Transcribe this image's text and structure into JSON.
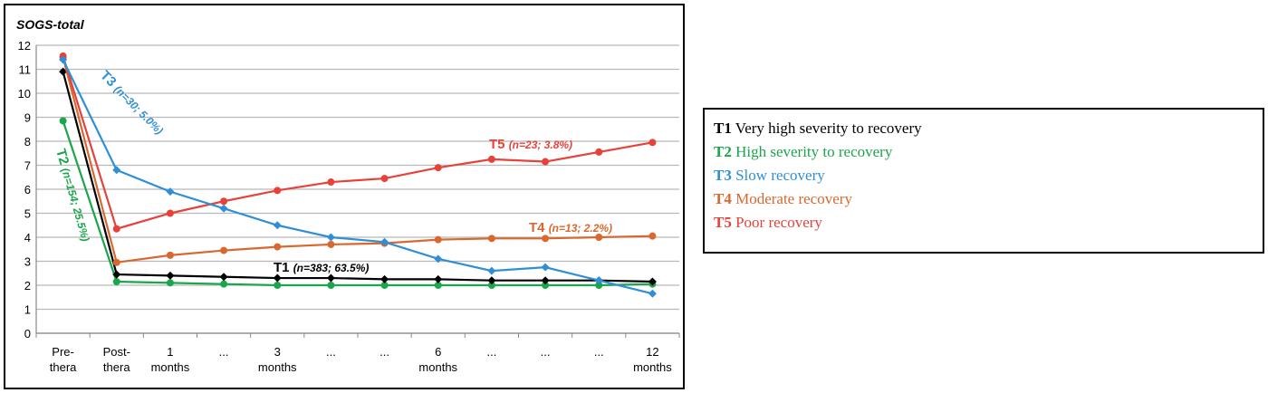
{
  "chart_data": {
    "type": "line",
    "title": "SOGS-total",
    "ylim": [
      0,
      12
    ],
    "yticks": [
      0,
      1,
      2,
      3,
      4,
      5,
      6,
      7,
      8,
      9,
      10,
      11,
      12
    ],
    "x_tick_labels": [
      [
        "Pre-",
        "thera"
      ],
      [
        "Post-",
        "thera"
      ],
      [
        "1",
        "months"
      ],
      [
        "...",
        ""
      ],
      [
        "3",
        "months"
      ],
      [
        "...",
        ""
      ],
      [
        "...",
        ""
      ],
      [
        "6",
        "months"
      ],
      [
        "...",
        ""
      ],
      [
        "...",
        ""
      ],
      [
        "...",
        ""
      ],
      [
        "12",
        "months"
      ]
    ],
    "grid": true,
    "series": [
      {
        "name": "T1",
        "color": "#000000",
        "marker": "diamond",
        "values": [
          10.9,
          2.45,
          2.4,
          2.35,
          2.3,
          2.3,
          2.25,
          2.25,
          2.2,
          2.2,
          2.2,
          2.15
        ]
      },
      {
        "name": "T2",
        "color": "#1aa64b",
        "marker": "circle",
        "values": [
          8.85,
          2.15,
          2.1,
          2.05,
          2.0,
          2.0,
          2.0,
          2.0,
          2.0,
          2.0,
          2.0,
          2.05
        ]
      },
      {
        "name": "T3",
        "color": "#2f8fd6",
        "marker": "diamond",
        "values": [
          11.4,
          6.8,
          5.9,
          5.2,
          4.5,
          4.0,
          3.8,
          3.1,
          2.6,
          2.75,
          2.2,
          1.65
        ]
      },
      {
        "name": "T4",
        "color": "#d9682e",
        "marker": "circle",
        "values": [
          11.5,
          2.95,
          3.25,
          3.45,
          3.6,
          3.7,
          3.75,
          3.9,
          3.95,
          3.95,
          4.0,
          4.05
        ]
      },
      {
        "name": "T5",
        "color": "#e8413a",
        "marker": "circle",
        "values": [
          11.55,
          4.35,
          5.0,
          5.5,
          5.95,
          6.3,
          6.45,
          6.9,
          7.25,
          7.15,
          7.55,
          7.95
        ]
      }
    ],
    "annotations": [
      {
        "series": "T1",
        "text_code": "T1",
        "text_detail": "(n=383; 63.5%)",
        "color": "#000000"
      },
      {
        "series": "T2",
        "text_code": "T2",
        "text_detail": "(n=154; 25.5%)",
        "color": "#1aa64b"
      },
      {
        "series": "T3",
        "text_code": "T3",
        "text_detail": "(n=30; 5.0%)",
        "color": "#2f8fd6"
      },
      {
        "series": "T4",
        "text_code": "T4",
        "text_detail": "(n=13; 2.2%)",
        "color": "#d9682e"
      },
      {
        "series": "T5",
        "text_code": "T5",
        "text_detail": "(n=23; 3.8%)",
        "color": "#e8413a"
      }
    ]
  },
  "legend": {
    "items": [
      {
        "code": "T1",
        "label": "Very high severity to recovery",
        "color": "#000000"
      },
      {
        "code": "T2",
        "label": "High severity to recovery",
        "color": "#1aa64b"
      },
      {
        "code": "T3",
        "label": "Slow recovery",
        "color": "#2f8fd6"
      },
      {
        "code": "T4",
        "label": "Moderate recovery",
        "color": "#d9682e"
      },
      {
        "code": "T5",
        "label": "Poor recovery",
        "color": "#e8413a"
      }
    ]
  }
}
